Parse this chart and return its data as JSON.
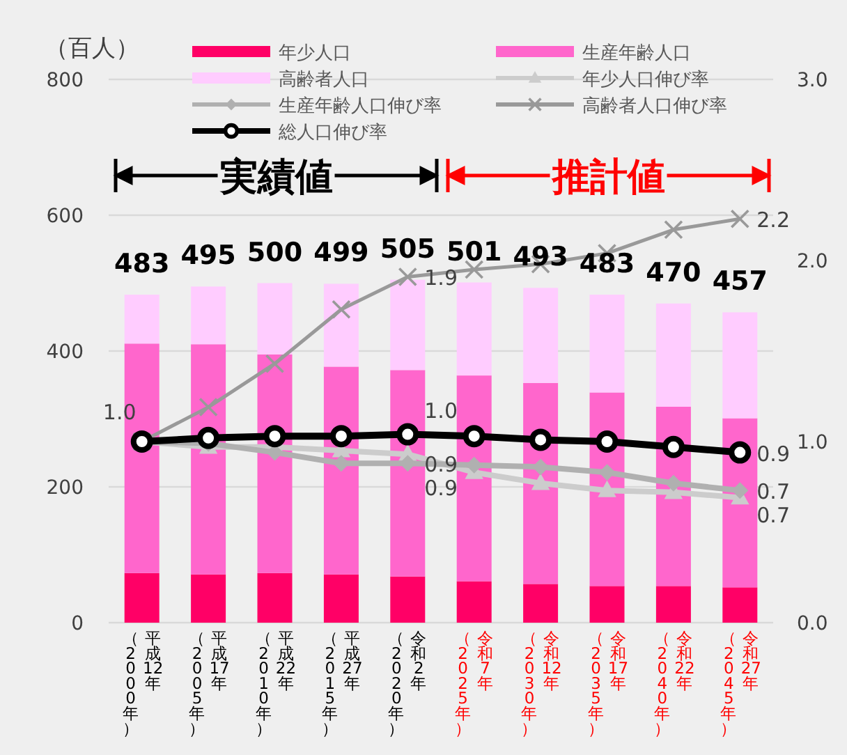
{
  "chart_data": {
    "type": "bar",
    "stacked": true,
    "ylabel": "（百人）",
    "categories": [
      "平成12年（2000年）",
      "平成17年（2005年）",
      "平成22年（2010年）",
      "平成27年（2015年）",
      "令和2年（2020年）",
      "令和7年（2025年）",
      "令和12年（2030年）",
      "令和17年（2035年）",
      "令和22年（2040年）",
      "令和27年（2045年）"
    ],
    "series": [
      {
        "name": "年少人口",
        "color": "#ff0066",
        "values": [
          73,
          71,
          73,
          71,
          68,
          61,
          57,
          54,
          54,
          52
        ]
      },
      {
        "name": "生産年齢人口",
        "color": "#ff66cc",
        "values": [
          338,
          339,
          322,
          306,
          304,
          303,
          296,
          285,
          264,
          249
        ]
      },
      {
        "name": "高齢者人口",
        "color": "#ffccff",
        "values": [
          72,
          85,
          105,
          122,
          133,
          137,
          140,
          144,
          152,
          156
        ]
      },
      {
        "name": "年少人口伸び率",
        "type": "line",
        "axis": "y2",
        "color": "#cccccc",
        "marker": "triangle",
        "values": [
          1.0,
          0.97,
          0.97,
          0.95,
          0.93,
          0.83,
          0.77,
          0.73,
          0.72,
          0.69
        ],
        "value_labels": [
          null,
          null,
          null,
          null,
          "0.9",
          null,
          null,
          null,
          null,
          "0.7"
        ]
      },
      {
        "name": "生産年齢人口伸び率",
        "type": "line",
        "axis": "y2",
        "color": "#b0b0b0",
        "marker": "diamond",
        "values": [
          1.0,
          0.99,
          0.94,
          0.88,
          0.88,
          0.87,
          0.86,
          0.83,
          0.77,
          0.73
        ],
        "value_labels": [
          null,
          null,
          null,
          null,
          "0.9",
          null,
          null,
          null,
          null,
          "0.7"
        ]
      },
      {
        "name": "高齢者人口伸び率",
        "type": "line",
        "axis": "y2",
        "color": "#999999",
        "marker": "cross",
        "values": [
          1.0,
          1.19,
          1.43,
          1.73,
          1.91,
          1.95,
          1.98,
          2.04,
          2.17,
          2.23
        ],
        "value_labels": [
          null,
          null,
          null,
          null,
          "1.9",
          null,
          null,
          null,
          null,
          "2.2"
        ]
      },
      {
        "name": "総人口伸び率",
        "type": "line",
        "axis": "y2",
        "color": "#000000",
        "marker": "circle",
        "values": [
          1.0,
          1.02,
          1.03,
          1.03,
          1.04,
          1.03,
          1.01,
          1.0,
          0.97,
          0.94
        ],
        "value_labels": [
          "1.0",
          null,
          null,
          null,
          "1.0",
          null,
          null,
          null,
          null,
          "0.9"
        ]
      }
    ],
    "totals": [
      "483",
      "495",
      "500",
      "499",
      "505",
      "501",
      "493",
      "483",
      "470",
      "457"
    ],
    "ylim": [
      0,
      800
    ],
    "yticks": [
      0,
      200,
      400,
      600,
      800
    ],
    "y2lim": [
      0,
      3
    ],
    "y2ticks": [
      {
        "value": 0,
        "label": "0.0"
      },
      {
        "value": 1,
        "label": "1.0"
      },
      {
        "value": 2,
        "label": "2.0"
      },
      {
        "value": 3,
        "label": "3.0"
      }
    ],
    "annotations": [
      "実績値",
      "推計値"
    ],
    "grid": "y",
    "legend": "top"
  }
}
